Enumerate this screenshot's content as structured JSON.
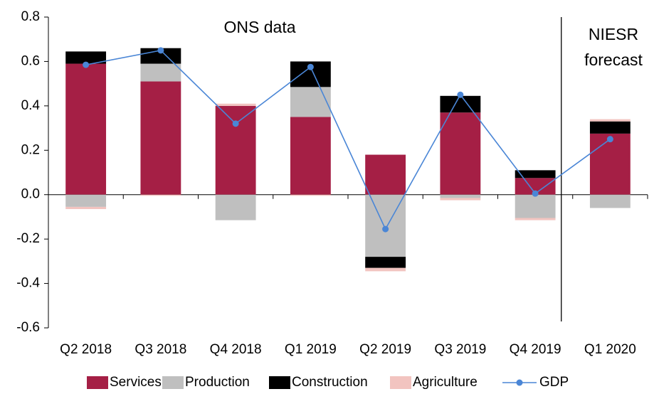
{
  "chart_data": {
    "type": "bar",
    "annotations": [
      "ONS data",
      "NIESR",
      "forecast"
    ],
    "categories": [
      "Q2 2018",
      "Q3 2018",
      "Q4 2018",
      "Q1 2019",
      "Q2 2019",
      "Q3 2019",
      "Q4 2019",
      "Q1 2020"
    ],
    "series": [
      {
        "name": "Services",
        "color": "#a51f45",
        "values": [
          0.59,
          0.51,
          0.4,
          0.35,
          0.18,
          0.37,
          0.075,
          0.275
        ]
      },
      {
        "name": "Production",
        "color": "#bfbfbf",
        "values": [
          -0.055,
          0.08,
          -0.115,
          0.135,
          -0.28,
          -0.015,
          -0.105,
          -0.06
        ]
      },
      {
        "name": "Construction",
        "color": "#000000",
        "values": [
          0.055,
          0.07,
          0,
          0.115,
          -0.05,
          0.075,
          0.035,
          0.055
        ]
      },
      {
        "name": "Agriculture",
        "color": "#f2c4c0",
        "values": [
          -0.01,
          -0.005,
          0.01,
          -0.005,
          -0.015,
          -0.01,
          -0.01,
          0.01
        ]
      },
      {
        "name": "GDP",
        "color": "#4a86d6",
        "type": "line",
        "values": [
          0.585,
          0.65,
          0.32,
          0.575,
          -0.155,
          0.45,
          0.005,
          0.25
        ]
      }
    ],
    "stacked": true,
    "ylim": [
      -0.6,
      0.8
    ],
    "yticks": [
      -0.6,
      -0.4,
      -0.2,
      {
        "value": 0,
        "label": "0.0"
      },
      0.2,
      0.4,
      0.6,
      0.8
    ],
    "grid": false,
    "legend": "bottom"
  }
}
